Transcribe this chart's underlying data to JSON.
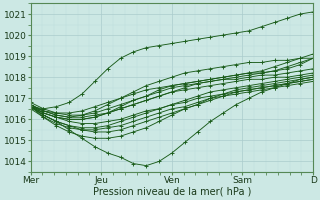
{
  "bg_color": "#cce8e4",
  "grid_color_major": "#aacccc",
  "grid_color_minor": "#bbdddd",
  "line_color": "#1a5c1a",
  "ylabel": "Pression niveau de la mer( hPa )",
  "ylim": [
    1013.5,
    1021.5
  ],
  "yticks": [
    1014,
    1015,
    1016,
    1017,
    1018,
    1019,
    1020,
    1021
  ],
  "xtick_positions": [
    0,
    1,
    2,
    3,
    4
  ],
  "xtick_labels": [
    "Mer",
    "Jeu",
    "Ven",
    "Sam",
    "D"
  ],
  "axis_fontsize": 7,
  "tick_fontsize": 6.5,
  "series": [
    [
      1016.6,
      1016.5,
      1016.6,
      1016.8,
      1017.2,
      1017.8,
      1018.4,
      1018.9,
      1019.2,
      1019.4,
      1019.5,
      1019.6,
      1019.7,
      1019.8,
      1019.9,
      1020.0,
      1020.1,
      1020.2,
      1020.4,
      1020.6,
      1020.8,
      1021.0,
      1021.1
    ],
    [
      1016.6,
      1016.2,
      1015.9,
      1015.5,
      1015.1,
      1014.7,
      1014.4,
      1014.2,
      1013.9,
      1013.8,
      1014.0,
      1014.4,
      1014.9,
      1015.4,
      1015.9,
      1016.3,
      1016.7,
      1017.0,
      1017.3,
      1017.5,
      1017.7,
      1017.9,
      1018.0
    ],
    [
      1016.6,
      1016.3,
      1016.1,
      1016.0,
      1016.0,
      1016.1,
      1016.3,
      1016.5,
      1016.7,
      1016.9,
      1017.1,
      1017.3,
      1017.5,
      1017.7,
      1017.8,
      1017.9,
      1018.0,
      1018.1,
      1018.2,
      1018.3,
      1018.5,
      1018.7,
      1018.9
    ],
    [
      1016.6,
      1016.2,
      1015.9,
      1015.7,
      1015.6,
      1015.6,
      1015.7,
      1015.9,
      1016.1,
      1016.3,
      1016.5,
      1016.7,
      1016.9,
      1017.1,
      1017.3,
      1017.4,
      1017.5,
      1017.6,
      1017.7,
      1017.8,
      1017.9,
      1018.0,
      1018.1
    ],
    [
      1016.7,
      1016.4,
      1016.2,
      1016.1,
      1016.1,
      1016.2,
      1016.3,
      1016.5,
      1016.7,
      1016.9,
      1017.1,
      1017.3,
      1017.4,
      1017.5,
      1017.6,
      1017.7,
      1017.8,
      1017.9,
      1017.9,
      1018.0,
      1018.0,
      1018.1,
      1018.2
    ],
    [
      1016.7,
      1016.3,
      1016.1,
      1015.9,
      1015.8,
      1015.8,
      1015.9,
      1016.0,
      1016.2,
      1016.4,
      1016.5,
      1016.7,
      1016.8,
      1017.0,
      1017.1,
      1017.2,
      1017.3,
      1017.4,
      1017.5,
      1017.6,
      1017.7,
      1017.8,
      1017.9
    ],
    [
      1016.6,
      1016.1,
      1015.7,
      1015.4,
      1015.2,
      1015.1,
      1015.1,
      1015.2,
      1015.4,
      1015.6,
      1015.9,
      1016.2,
      1016.5,
      1016.7,
      1017.0,
      1017.2,
      1017.4,
      1017.5,
      1017.6,
      1017.7,
      1017.8,
      1017.9,
      1018.0
    ],
    [
      1016.6,
      1016.2,
      1015.9,
      1015.7,
      1015.5,
      1015.4,
      1015.4,
      1015.5,
      1015.7,
      1015.9,
      1016.1,
      1016.3,
      1016.5,
      1016.7,
      1016.9,
      1017.1,
      1017.3,
      1017.4,
      1017.5,
      1017.6,
      1017.7,
      1017.8,
      1017.9
    ],
    [
      1016.5,
      1016.1,
      1015.8,
      1015.6,
      1015.5,
      1015.5,
      1015.6,
      1015.7,
      1015.9,
      1016.1,
      1016.3,
      1016.5,
      1016.6,
      1016.8,
      1017.0,
      1017.1,
      1017.2,
      1017.3,
      1017.4,
      1017.5,
      1017.6,
      1017.7,
      1017.8
    ],
    [
      1016.6,
      1016.4,
      1016.3,
      1016.3,
      1016.4,
      1016.6,
      1016.8,
      1017.0,
      1017.2,
      1017.4,
      1017.5,
      1017.6,
      1017.7,
      1017.8,
      1017.9,
      1018.0,
      1018.1,
      1018.2,
      1018.2,
      1018.3,
      1018.4,
      1018.6,
      1018.9
    ],
    [
      1016.8,
      1016.5,
      1016.3,
      1016.2,
      1016.2,
      1016.3,
      1016.5,
      1016.7,
      1016.9,
      1017.1,
      1017.3,
      1017.5,
      1017.6,
      1017.7,
      1017.8,
      1017.9,
      1017.9,
      1018.0,
      1018.1,
      1018.1,
      1018.2,
      1018.3,
      1018.4
    ],
    [
      1016.6,
      1016.3,
      1016.1,
      1016.0,
      1016.0,
      1016.1,
      1016.3,
      1016.6,
      1016.9,
      1017.1,
      1017.4,
      1017.6,
      1017.7,
      1017.8,
      1017.9,
      1018.0,
      1018.1,
      1018.2,
      1018.3,
      1018.5,
      1018.7,
      1018.9,
      1019.1
    ],
    [
      1016.7,
      1016.4,
      1016.2,
      1016.1,
      1016.2,
      1016.4,
      1016.7,
      1017.0,
      1017.3,
      1017.6,
      1017.8,
      1018.0,
      1018.2,
      1018.3,
      1018.4,
      1018.5,
      1018.6,
      1018.7,
      1018.7,
      1018.8,
      1018.8,
      1018.9,
      1018.9
    ]
  ]
}
